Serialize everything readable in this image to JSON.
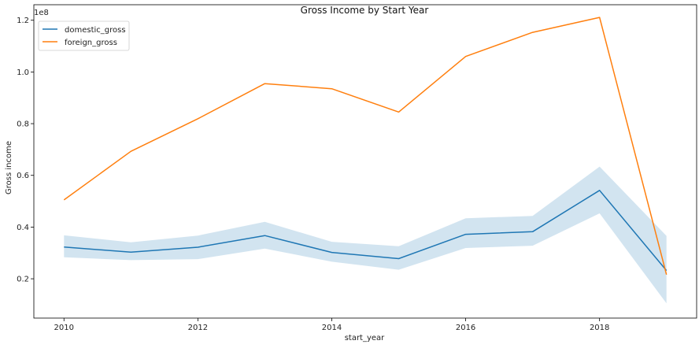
{
  "chart_data": {
    "type": "line",
    "title": "Gross Income by Start Year",
    "xlabel": "start_year",
    "ylabel": "Gross income",
    "y_scale_label": "1e8",
    "x": [
      2010,
      2011,
      2012,
      2013,
      2014,
      2015,
      2016,
      2017,
      2018,
      2019
    ],
    "xlim": [
      2009.55,
      2019.45
    ],
    "ylim": [
      4800000,
      126000000
    ],
    "x_ticks": [
      2010,
      2012,
      2014,
      2016,
      2018
    ],
    "y_ticks": [
      20000000,
      40000000,
      60000000,
      80000000,
      100000000,
      120000000
    ],
    "y_tick_labels": [
      "0.2",
      "0.4",
      "0.6",
      "0.8",
      "1.0",
      "1.2"
    ],
    "grid": false,
    "legend_position": "top-left",
    "series": [
      {
        "name": "domestic_gross",
        "color": "#1f77b4",
        "values": [
          32300000,
          30300000,
          32200000,
          36700000,
          30200000,
          27800000,
          37200000,
          38200000,
          54200000,
          23200000
        ],
        "ci_lower": [
          28300000,
          27200000,
          27600000,
          31700000,
          26600000,
          23500000,
          31900000,
          32800000,
          45300000,
          10500000
        ],
        "ci_upper": [
          36800000,
          34100000,
          36700000,
          42000000,
          34300000,
          32600000,
          43400000,
          44300000,
          63400000,
          36600000
        ]
      },
      {
        "name": "foreign_gross",
        "color": "#ff7f0e",
        "values": [
          50500000,
          69300000,
          81900000,
          95500000,
          93500000,
          84500000,
          106000000,
          115300000,
          121100000,
          21600000
        ]
      }
    ]
  }
}
